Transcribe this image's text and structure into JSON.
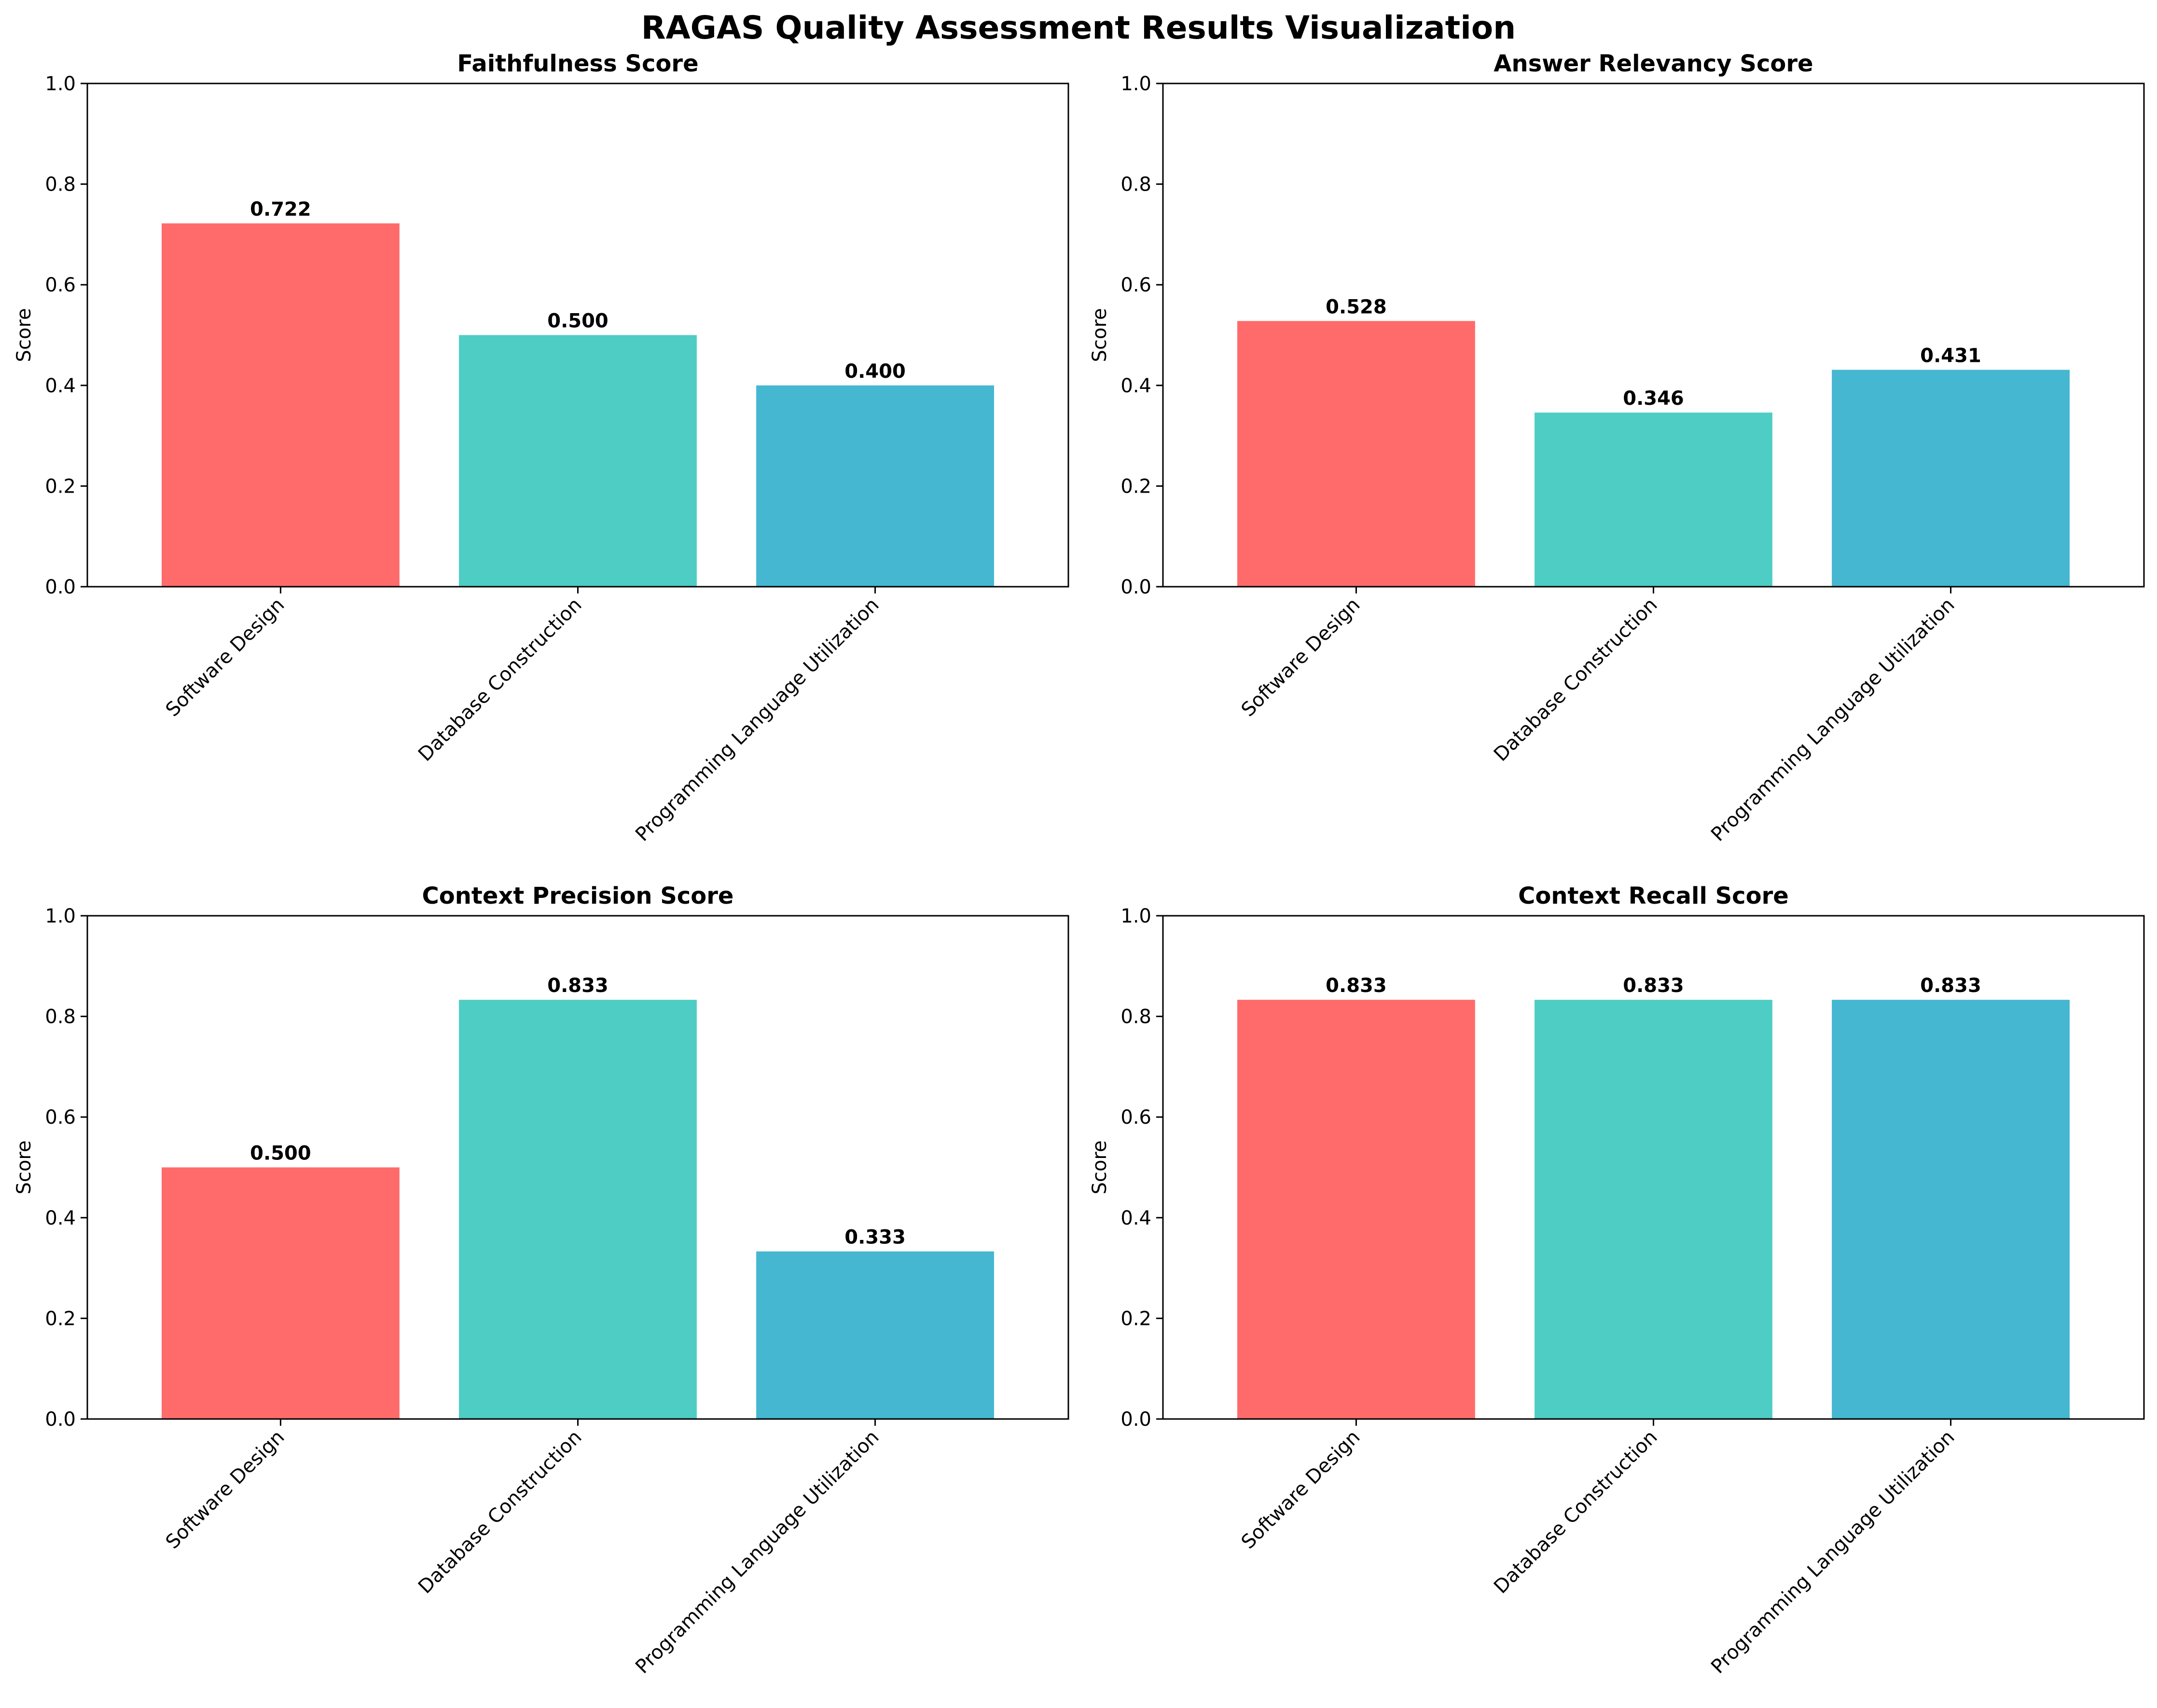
{
  "figure": {
    "suptitle": "RAGAS Quality Assessment Results Visualization"
  },
  "chart_data": [
    {
      "type": "bar",
      "title": "Faithfulness Score",
      "xlabel": "",
      "ylabel": "Score",
      "ylim": [
        0,
        1.0
      ],
      "yticks": [
        "0.0",
        "0.2",
        "0.4",
        "0.6",
        "0.8",
        "1.0"
      ],
      "categories": [
        "Software Design",
        "Database Construction",
        "Programming Language Utilization"
      ],
      "values": [
        0.722,
        0.5,
        0.4
      ],
      "value_labels": [
        "0.722",
        "0.500",
        "0.400"
      ],
      "colors": [
        "#FF6B6B",
        "#4ECDC4",
        "#45B7D1"
      ],
      "grid": false
    },
    {
      "type": "bar",
      "title": "Answer Relevancy Score",
      "xlabel": "",
      "ylabel": "Score",
      "ylim": [
        0,
        1.0
      ],
      "yticks": [
        "0.0",
        "0.2",
        "0.4",
        "0.6",
        "0.8",
        "1.0"
      ],
      "categories": [
        "Software Design",
        "Database Construction",
        "Programming Language Utilization"
      ],
      "values": [
        0.528,
        0.346,
        0.431
      ],
      "value_labels": [
        "0.528",
        "0.346",
        "0.431"
      ],
      "colors": [
        "#FF6B6B",
        "#4ECDC4",
        "#45B7D1"
      ],
      "grid": false
    },
    {
      "type": "bar",
      "title": "Context Precision Score",
      "xlabel": "",
      "ylabel": "Score",
      "ylim": [
        0,
        1.0
      ],
      "yticks": [
        "0.0",
        "0.2",
        "0.4",
        "0.6",
        "0.8",
        "1.0"
      ],
      "categories": [
        "Software Design",
        "Database Construction",
        "Programming Language Utilization"
      ],
      "values": [
        0.5,
        0.833,
        0.333
      ],
      "value_labels": [
        "0.500",
        "0.833",
        "0.333"
      ],
      "colors": [
        "#FF6B6B",
        "#4ECDC4",
        "#45B7D1"
      ],
      "grid": false
    },
    {
      "type": "bar",
      "title": "Context Recall Score",
      "xlabel": "",
      "ylabel": "Score",
      "ylim": [
        0,
        1.0
      ],
      "yticks": [
        "0.0",
        "0.2",
        "0.4",
        "0.6",
        "0.8",
        "1.0"
      ],
      "categories": [
        "Software Design",
        "Database Construction",
        "Programming Language Utilization"
      ],
      "values": [
        0.833,
        0.833,
        0.833
      ],
      "value_labels": [
        "0.833",
        "0.833",
        "0.833"
      ],
      "colors": [
        "#FF6B6B",
        "#4ECDC4",
        "#45B7D1"
      ],
      "grid": false
    }
  ]
}
